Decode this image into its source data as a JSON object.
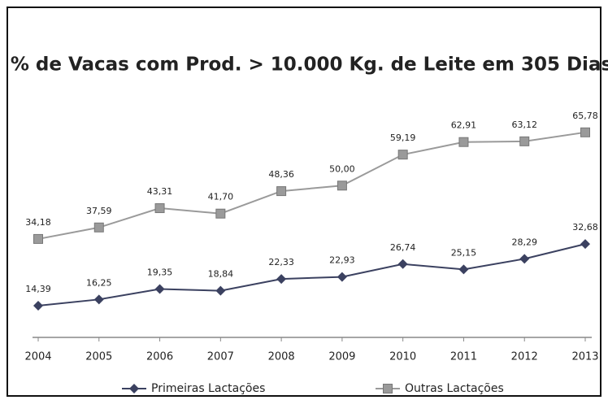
{
  "chart_data": {
    "type": "line",
    "title": "% de Vacas com Prod. > 10.000 Kg. de Leite em 305 Dias",
    "categories": [
      "2004",
      "2005",
      "2006",
      "2007",
      "2008",
      "2009",
      "2010",
      "2011",
      "2012",
      "2013"
    ],
    "series": [
      {
        "name": "Primeiras Lactações",
        "color": "#3b4160",
        "marker": "diamond",
        "values": [
          14.39,
          16.25,
          19.35,
          18.84,
          22.33,
          22.93,
          26.74,
          25.15,
          28.29,
          32.68
        ],
        "value_labels": [
          "14,39",
          "16,25",
          "19,35",
          "18,84",
          "22,33",
          "22,93",
          "26,74",
          "25,15",
          "28,29",
          "32,68"
        ]
      },
      {
        "name": "Outras Lactações",
        "color": "#9a9a9a",
        "marker": "square",
        "values": [
          34.18,
          37.59,
          43.31,
          41.7,
          48.36,
          50.0,
          59.19,
          62.91,
          63.12,
          65.78
        ],
        "value_labels": [
          "34,18",
          "37,59",
          "43,31",
          "41,70",
          "48,36",
          "50,00",
          "59,19",
          "62,91",
          "63,12",
          "65,78"
        ]
      }
    ],
    "ylim": [
      5,
      72
    ],
    "legend": "bottom"
  }
}
